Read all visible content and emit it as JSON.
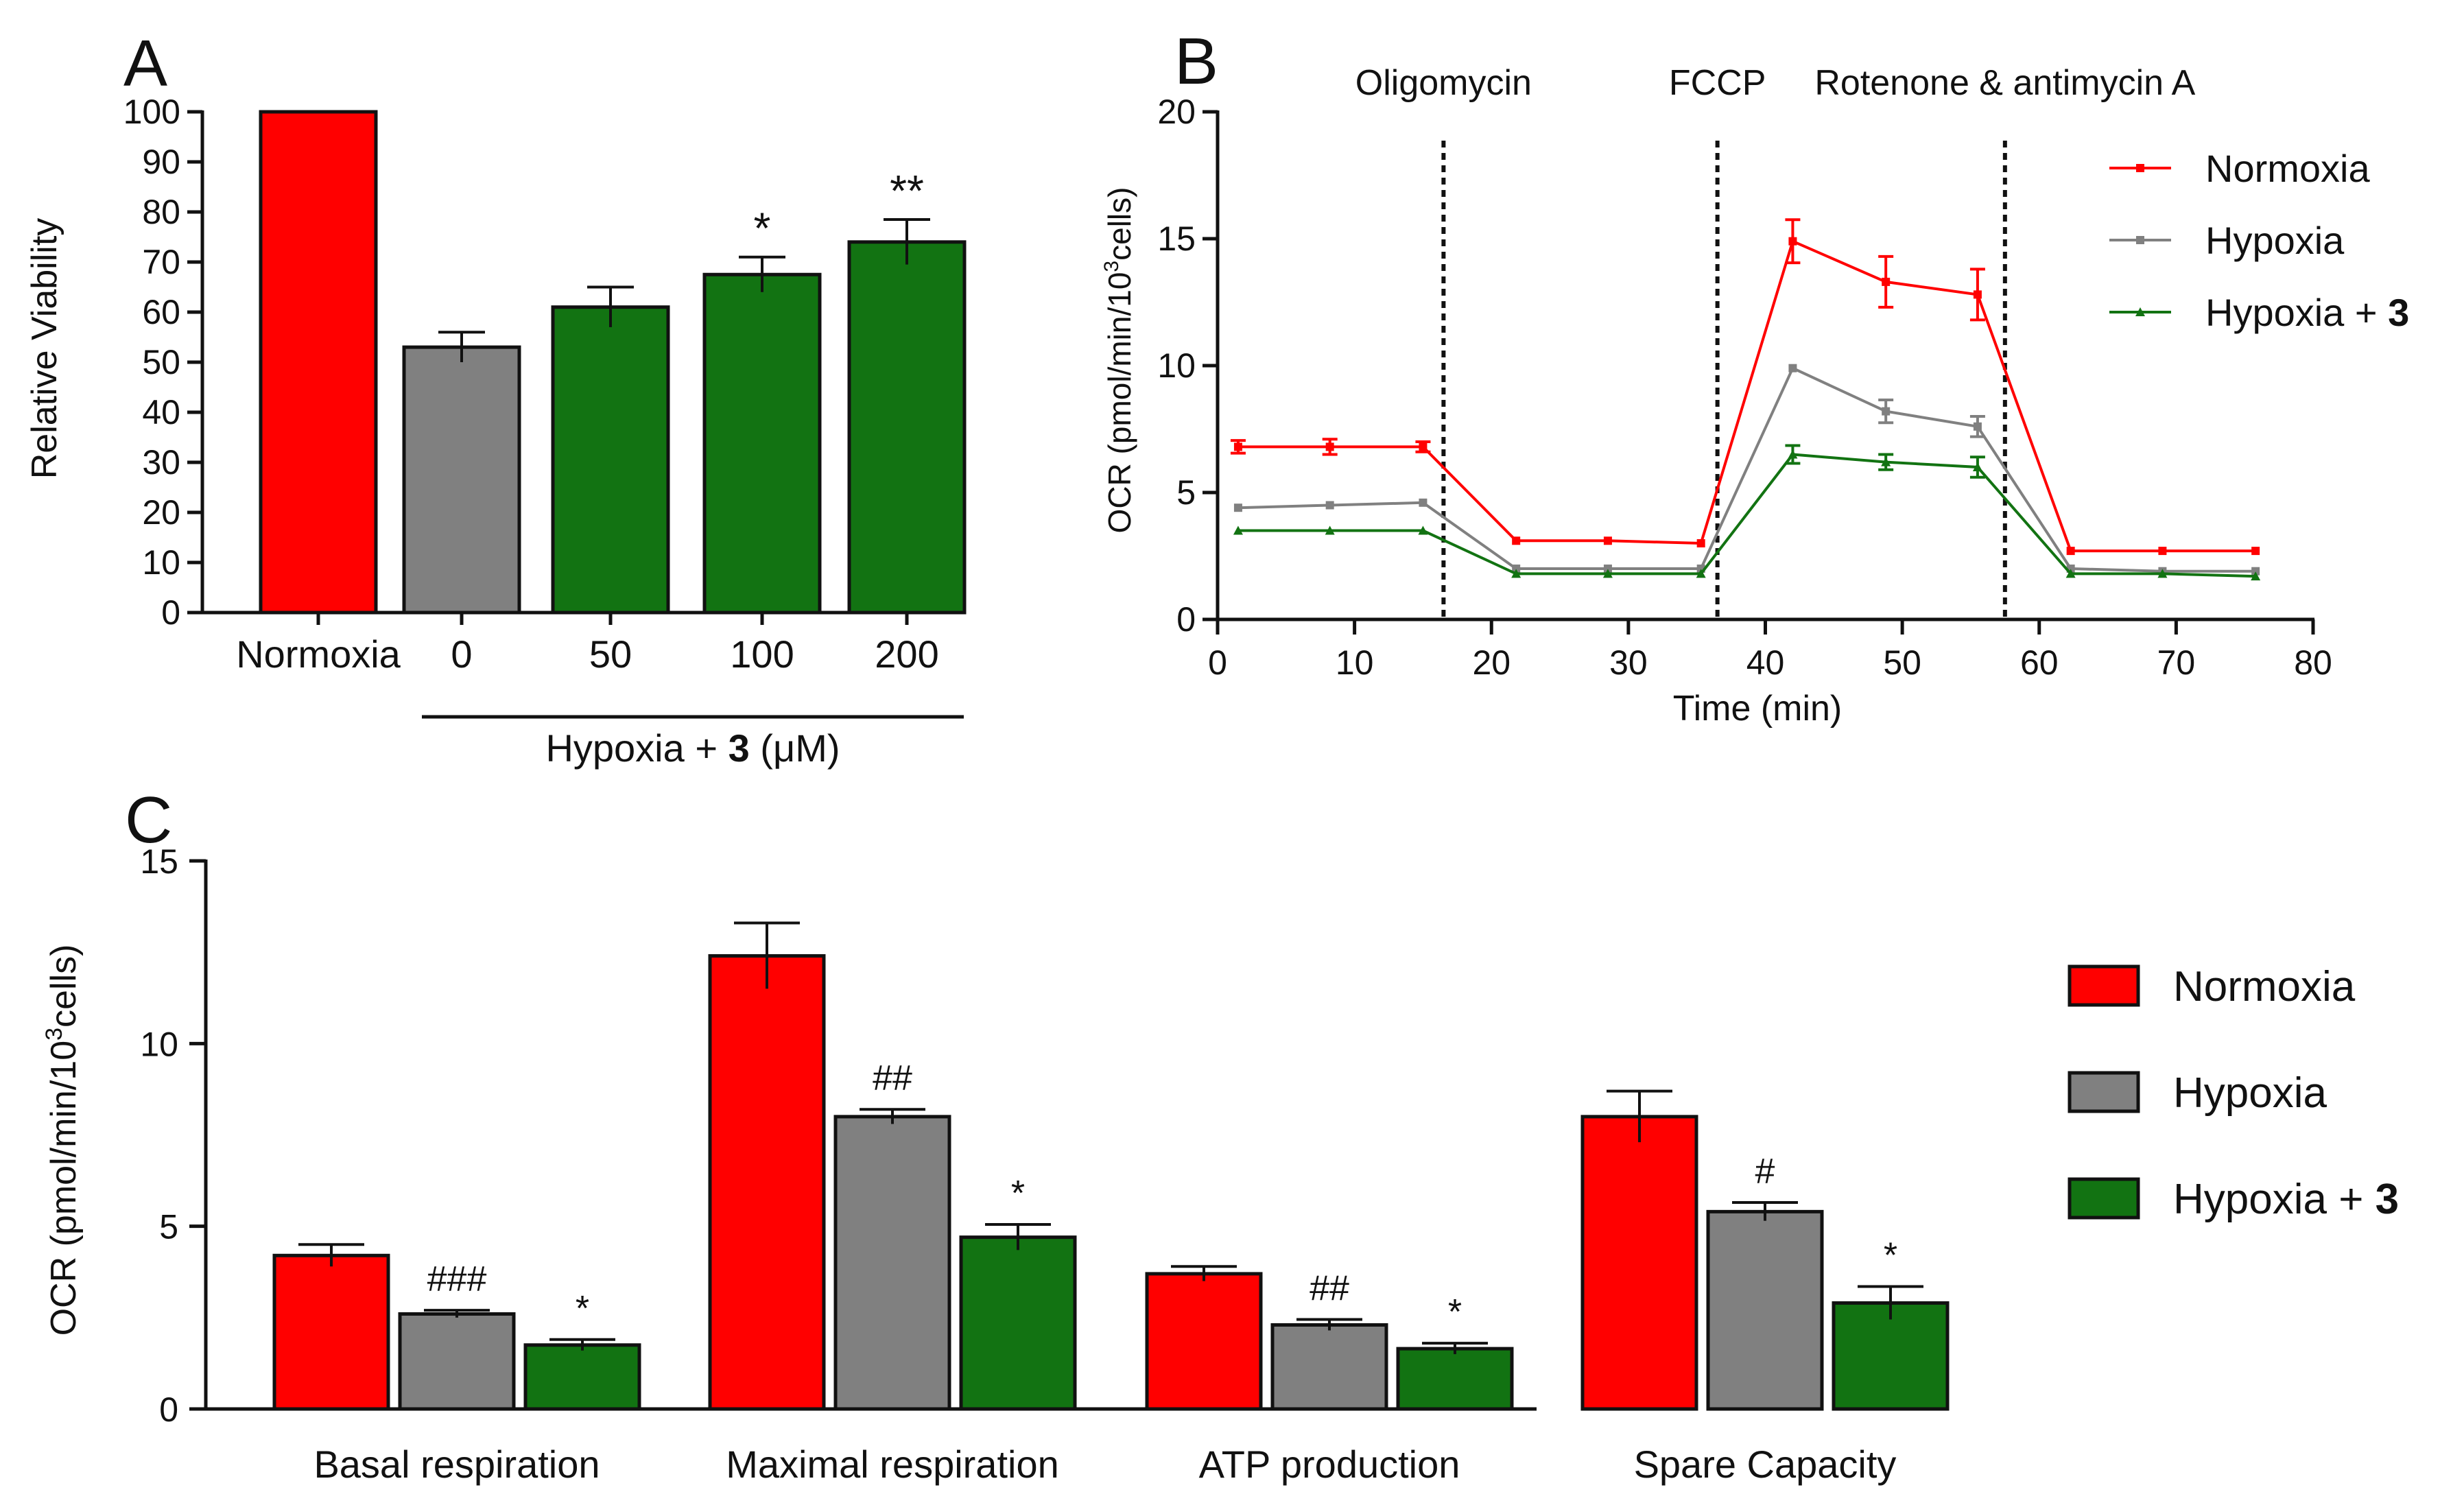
{
  "colors": {
    "normoxia": "#ff0000",
    "hypoxia": "#808080",
    "treated": "#127312",
    "axis": "#111111"
  },
  "chart_data": [
    {
      "panel": "A",
      "type": "bar",
      "ylabel": "Relative Viability",
      "ylim": [
        0,
        100
      ],
      "yticks": [
        0,
        10,
        20,
        30,
        40,
        50,
        60,
        70,
        80,
        90,
        100
      ],
      "categories": [
        "Normoxia",
        "0",
        "50",
        "100",
        "200"
      ],
      "values": [
        100,
        53,
        61,
        67.5,
        74
      ],
      "errors": [
        0,
        3,
        4,
        3.5,
        4.5
      ],
      "bar_colors": [
        "normoxia",
        "hypoxia",
        "treated",
        "treated",
        "treated"
      ],
      "annotations": [
        "",
        "",
        "",
        "*",
        "**"
      ],
      "group_label": {
        "prefix": "Hypoxia + ",
        "bold": "3",
        "suffix": " (μM)"
      }
    },
    {
      "panel": "B",
      "type": "line",
      "xlabel": "Time (min)",
      "ylabel_prefix": "OCR (pmol/min/10",
      "ylabel_sup": "3",
      "ylabel_suffix": "cells)",
      "xlim": [
        0,
        80
      ],
      "ylim": [
        0,
        20
      ],
      "xticks": [
        0,
        10,
        20,
        30,
        40,
        50,
        60,
        70,
        80
      ],
      "yticks": [
        0,
        5,
        10,
        15,
        20
      ],
      "x": [
        1.5,
        8.2,
        15,
        21.8,
        28.5,
        35.3,
        42,
        48.8,
        55.5,
        62.3,
        69,
        75.8
      ],
      "series": [
        {
          "name": "Normoxia",
          "color": "normoxia",
          "values": [
            6.8,
            6.8,
            6.8,
            3.1,
            3.1,
            3.0,
            14.9,
            13.3,
            12.8,
            2.7,
            2.7,
            2.7
          ],
          "errors": [
            0.25,
            0.3,
            0.2,
            0.05,
            0.05,
            0.05,
            0.85,
            1.0,
            1.0,
            0.05,
            0.05,
            0.05
          ]
        },
        {
          "name": "Hypoxia",
          "color": "hypoxia",
          "values": [
            4.4,
            4.5,
            4.6,
            2.0,
            2.0,
            2.0,
            9.9,
            8.2,
            7.6,
            2.0,
            1.9,
            1.9
          ],
          "errors": [
            0.1,
            0.1,
            0.1,
            0.05,
            0.05,
            0.05,
            0.1,
            0.45,
            0.4,
            0.05,
            0.05,
            0.05
          ]
        },
        {
          "name": "Hypoxia + 3",
          "name_prefix": "Hypoxia + ",
          "name_bold": "3",
          "color": "treated",
          "values": [
            3.5,
            3.5,
            3.5,
            1.8,
            1.8,
            1.8,
            6.5,
            6.2,
            6.0,
            1.8,
            1.8,
            1.7
          ],
          "errors": [
            0.05,
            0.05,
            0.05,
            0.05,
            0.05,
            0.05,
            0.35,
            0.3,
            0.4,
            0.05,
            0.05,
            0.05
          ]
        }
      ],
      "markers": [
        {
          "label": "Oligomycin",
          "x": 16.5
        },
        {
          "label": "FCCP",
          "x": 36.5
        },
        {
          "label": "Rotenone & antimycin A",
          "x": 57.5
        }
      ]
    },
    {
      "panel": "C",
      "type": "bar",
      "ylabel_prefix": "OCR (pmol/min/10",
      "ylabel_sup": "3",
      "ylabel_suffix": "cells)",
      "ylim": [
        0,
        15
      ],
      "yticks": [
        0,
        5,
        10,
        15
      ],
      "categories": [
        "Basal respiration",
        "Maximal respiration",
        "ATP production",
        "Spare Capacity"
      ],
      "series": [
        {
          "name": "Normoxia",
          "color": "normoxia",
          "values": [
            4.2,
            12.4,
            3.7,
            8.0
          ],
          "errors": [
            0.3,
            0.9,
            0.2,
            0.7
          ],
          "annotations": [
            "",
            "",
            "",
            ""
          ]
        },
        {
          "name": "Hypoxia",
          "color": "hypoxia",
          "values": [
            2.6,
            8.0,
            2.3,
            5.4
          ],
          "errors": [
            0.1,
            0.2,
            0.15,
            0.25
          ],
          "annotations": [
            "###",
            "##",
            "##",
            "#"
          ]
        },
        {
          "name": "Hypoxia + 3",
          "name_prefix": "Hypoxia + ",
          "name_bold": "3",
          "color": "treated",
          "values": [
            1.75,
            4.7,
            1.65,
            2.9
          ],
          "errors": [
            0.15,
            0.35,
            0.15,
            0.45
          ],
          "annotations": [
            "*",
            "*",
            "*",
            "*"
          ]
        }
      ]
    }
  ]
}
